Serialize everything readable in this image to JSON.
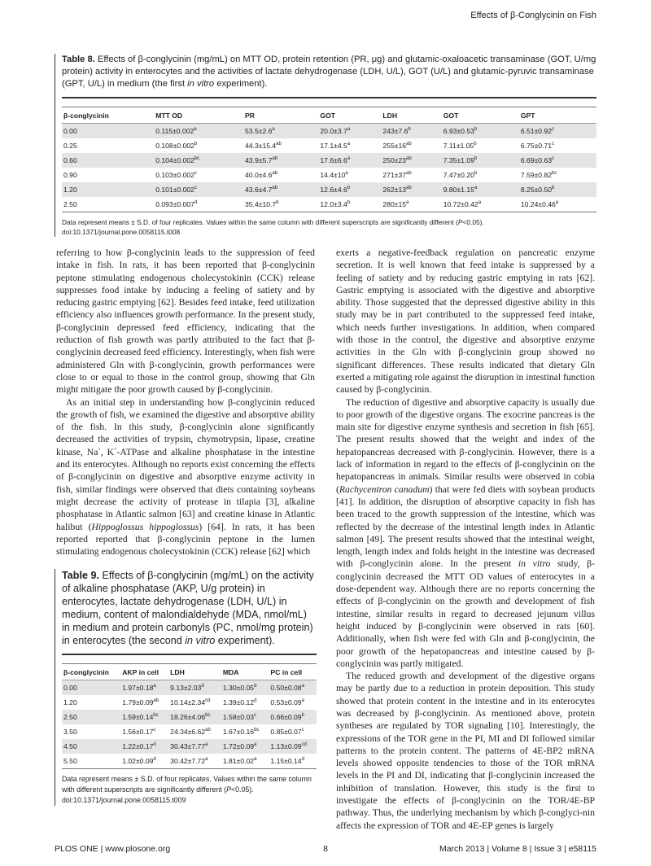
{
  "running_head": "Effects of β-Conglycinin on Fish",
  "table8": {
    "label": "Table 8.",
    "caption_pre": " Effects of β-conglycinin (mg/mL) on MTT OD, protein retention (PR, μg) and glutamic-oxaloacetic transaminase (GOT, U/mg protein) activity in enterocytes and the activities of lactate dehydrogenase (LDH, U/L), GOT (U/L) and glutamic-pyruvic transaminase (GPT, U/L) in medium (the first ",
    "caption_italic": "in vitro",
    "caption_post": " experiment).",
    "headers": [
      "β-conglycinin",
      "MTT OD",
      "PR",
      "GOT",
      "LDH",
      "GOT",
      "GPT"
    ],
    "rows": [
      [
        {
          "v": "0.00"
        },
        {
          "v": "0.115±0.002",
          "s": "a"
        },
        {
          "v": "53.5±2.6",
          "s": "a"
        },
        {
          "v": "20.0±3.7",
          "s": "a"
        },
        {
          "v": "243±7.6",
          "s": "b"
        },
        {
          "v": "6.93±0.53",
          "s": "b"
        },
        {
          "v": "6.51±0.92",
          "s": "c"
        }
      ],
      [
        {
          "v": "0.25"
        },
        {
          "v": "0.108±0.002",
          "s": "b"
        },
        {
          "v": "44.3±15.4",
          "s": "ab"
        },
        {
          "v": "17.1±4.5",
          "s": "a"
        },
        {
          "v": "255±16",
          "s": "ab"
        },
        {
          "v": "7.11±1.05",
          "s": "b"
        },
        {
          "v": "6.75±0.71",
          "s": "c"
        }
      ],
      [
        {
          "v": "0.60"
        },
        {
          "v": "0.104±0.002",
          "s": "bc"
        },
        {
          "v": "43.9±5.7",
          "s": "ab"
        },
        {
          "v": "17.6±6.6",
          "s": "a"
        },
        {
          "v": "250±23",
          "s": "ab"
        },
        {
          "v": "7.35±1.09",
          "s": "b"
        },
        {
          "v": "6.69±0.63",
          "s": "c"
        }
      ],
      [
        {
          "v": "0.90"
        },
        {
          "v": "0.103±0.002",
          "s": "c"
        },
        {
          "v": "40.0±4.6",
          "s": "ab"
        },
        {
          "v": "14.4±10",
          "s": "a"
        },
        {
          "v": "271±37",
          "s": "ab"
        },
        {
          "v": "7.47±0.20",
          "s": "b"
        },
        {
          "v": "7.59±0.82",
          "s": "bc"
        }
      ],
      [
        {
          "v": "1.20"
        },
        {
          "v": "0.101±0.002",
          "s": "c"
        },
        {
          "v": "43.6±4.7",
          "s": "ab"
        },
        {
          "v": "12.6±4.6",
          "s": "b"
        },
        {
          "v": "262±13",
          "s": "ab"
        },
        {
          "v": "9.80±1.15",
          "s": "a"
        },
        {
          "v": "8.25±0.50",
          "s": "b"
        }
      ],
      [
        {
          "v": "2.50"
        },
        {
          "v": "0.093±0.007",
          "s": "d"
        },
        {
          "v": "35.4±10.7",
          "s": "b"
        },
        {
          "v": "12.0±3.4",
          "s": "b"
        },
        {
          "v": "280±15",
          "s": "a"
        },
        {
          "v": "10.72±0.42",
          "s": "a"
        },
        {
          "v": "10.24±0.46",
          "s": "a"
        }
      ]
    ],
    "footnote_pre": "Data represent means ± S.D. of four replicates. Values within the same column with different superscripts are significantly different (",
    "footnote_italic": "P",
    "footnote_post": "<0.05).",
    "doi": "doi:10.1371/journal.pone.0058115.t008"
  },
  "table9": {
    "label": "Table 9.",
    "caption_pre": " Effects of β-conglycinin (mg/mL) on the activity of alkaline phosphatase (AKP, U/g protein) in enterocytes, lactate dehydrogenase (LDH, U/L) in medium, content of malondialdehyde (MDA, nmol/mL) in medium and protein carbonyls (PC, nmol/mg protein) in enterocytes (the second ",
    "caption_italic": "in vitro",
    "caption_post": " experiment).",
    "headers": [
      "β-conglycinin",
      "AKP in cell",
      "LDH",
      "MDA",
      "PC in cell"
    ],
    "rows": [
      [
        {
          "v": "0.00"
        },
        {
          "v": "1.97±0.18",
          "s": "a"
        },
        {
          "v": "9.13±2.03",
          "s": "d"
        },
        {
          "v": "1.30±0.05",
          "s": "d"
        },
        {
          "v": "0.50±0.08",
          "s": "a"
        }
      ],
      [
        {
          "v": "1.20"
        },
        {
          "v": "1.79±0.09",
          "s": "ab"
        },
        {
          "v": "10.14±2.34",
          "s": "cd"
        },
        {
          "v": "1.39±0.12",
          "s": "d"
        },
        {
          "v": "0.53±0.09",
          "s": "a"
        }
      ],
      [
        {
          "v": "2.50"
        },
        {
          "v": "1.59±0.14",
          "s": "bc"
        },
        {
          "v": "18.26±4.06",
          "s": "bc"
        },
        {
          "v": "1.58±0.03",
          "s": "c"
        },
        {
          "v": "0.66±0.09",
          "s": "b"
        }
      ],
      [
        {
          "v": "3.50"
        },
        {
          "v": "1.56±0.17",
          "s": "c"
        },
        {
          "v": "24.34±6.62",
          "s": "ab"
        },
        {
          "v": "1.67±0.16",
          "s": "bc"
        },
        {
          "v": "0.85±0.07",
          "s": "c"
        }
      ],
      [
        {
          "v": "4.50"
        },
        {
          "v": "1.22±0.17",
          "s": "d"
        },
        {
          "v": "30.43±7.77",
          "s": "a"
        },
        {
          "v": "1.72±0.09",
          "s": "a"
        },
        {
          "v": "1.13±0.09",
          "s": "cd"
        }
      ],
      [
        {
          "v": "5.50"
        },
        {
          "v": "1.02±0.09",
          "s": "d"
        },
        {
          "v": "30.42±7.72",
          "s": "a"
        },
        {
          "v": "1.81±0.02",
          "s": "a"
        },
        {
          "v": "1.15±0.14",
          "s": "d"
        }
      ]
    ],
    "footnote_pre": "Data represent means ± S.D. of four replicates. Values within the same column with different superscripts are significantly different (",
    "footnote_italic": "P",
    "footnote_post": "<0.05).",
    "doi": "doi:10.1371/journal.pone.0058115.t009"
  },
  "body": {
    "left": [
      {
        "noindent": true,
        "segs": [
          {
            "t": "referring to how β-conglycinin leads to the suppression of feed intake in fish. In rats, it has been reported that β-conglycinin peptone stimulating endogenous cholecystokinin (CCK) release suppresses food intake by inducing a feeling of satiety and by reducing gastric emptying [62]. Besides feed intake, feed utilization efficiency also influences growth performance. In the present study, β-conglycinin depressed feed efficiency, indicating that the reduction of fish growth was partly attributed to the fact that β-conglycinin decreased feed efficiency. Interestingly, when fish were administered Gln with β-conglycinin, growth performances were close to or equal to those in the control group, showing that Gln might mitigate the poor growth caused by β-conglycinin."
          }
        ]
      },
      {
        "segs": [
          {
            "t": "As an initial step in understanding how β-conglycinin reduced the growth of fish, we examined the digestive and absorptive ability of the fish. In this study, β-conglycinin alone significantly decreased the activities of trypsin, chymotrypsin, lipase, creatine kinase, Na"
          },
          {
            "sup": "+"
          },
          {
            "t": ", K"
          },
          {
            "sup": "+"
          },
          {
            "t": "-ATPase and alkaline phosphatase in the intestine and its enterocytes. Although no reports exist concerning the effects of β-conglycinin on digestive and absorptive enzyme activity in fish, similar findings were observed that diets containing soybeans might decrease the activity of protease in tilapia [3], alkaline phosphatase in Atlantic salmon [63] and creatine kinase in Atlantic halibut ("
          },
          {
            "i": "Hippoglossus hippoglossus"
          },
          {
            "t": ") [64]. In rats, it has been reported reported that β-conglycinin peptone in the lumen stimulating endogenous cholecystokinin (CCK) release [62] which"
          }
        ]
      }
    ],
    "right": [
      {
        "noindent": true,
        "segs": [
          {
            "t": "exerts a negative-feedback regulation on pancreatic enzyme secretion. It is well known that feed intake is suppressed by a feeling of satiety and by reducing gastric emptying in rats [62]. Gastric emptying is associated with the digestive and absorptive ability. Those suggested that the depressed digestive ability in this study may be in part contributed to the suppressed feed intake, which needs further investigations. In addition, when compared with those in the control, the digestive and absorptive enzyme activities in the Gln with β-conglycinin group showed no significant differences. These results indicated that dietary Gln exerted a mitigating role against the disruption in intestinal function caused by β-conglycinin."
          }
        ]
      },
      {
        "segs": [
          {
            "t": "The reduction of digestive and absorptive capacity is usually due to poor growth of the digestive organs. The exocrine pancreas is the main site for digestive enzyme synthesis and secretion in fish [65]. The present results showed that the weight and index of the hepatopancreas decreased with β-conglycinin. However, there is a lack of information in regard to the effects of β-conglycinin on the hepatopancreas in animals. Similar results were observed in cobia ("
          },
          {
            "i": "Rachycentron canadum"
          },
          {
            "t": ") that were fed diets with soybean products [41]. In addition, the disruption of absorptive capacity in fish has been traced to the growth suppression of the intestine, which was reflected by the decrease of the intestinal length index in Atlantic salmon [49]. The present results showed that the intestinal weight, length, length index and folds height in the intestine was decreased with β-conglycinin alone. In the present "
          },
          {
            "i": "in vitro"
          },
          {
            "t": " study, β-conglycinin decreased the MTT OD values of enterocytes in a dose-dependent way. Although there are no reports concerning the effects of β-conglycinin on the growth and development of fish intestine, similar results in regard to decreased jejunum villus height induced by β-conglycinin were observed in rats [60]. Additionally, when fish were fed with Gln and β-conglycinin, the poor growth of the hepatopancreas and intestine caused by β-conglycinin was partly mitigated."
          }
        ]
      },
      {
        "segs": [
          {
            "t": "The reduced growth and development of the digestive organs may be partly due to a reduction in protein deposition. This study showed that protein content in the intestine and in its enterocytes was decreased by β-conglycinin. As mentioned above, protein syntheses are regulated by TOR signaling [10]. Interestingly, the expressions of the TOR gene in the PI, MI and DI followed similar patterns to the protein content. The patterns of 4E-BP2 mRNA levels showed opposite tendencies to those of the TOR mRNA levels in the PI and DI, indicating that β-conglycinin increased the inhibition of translation. However, this study is the first to investigate the effects of β-conglycinin on the TOR/4E-BP pathway. Thus, the underlying mechanism by which β-conglyci-nin affects the expression of TOR and 4E-EP genes is largely"
          }
        ]
      }
    ]
  },
  "footer": {
    "journal": "PLOS ONE | www.plosone.org",
    "page": "8",
    "issue": "March 2013 | Volume 8 | Issue 3 | e58115"
  }
}
